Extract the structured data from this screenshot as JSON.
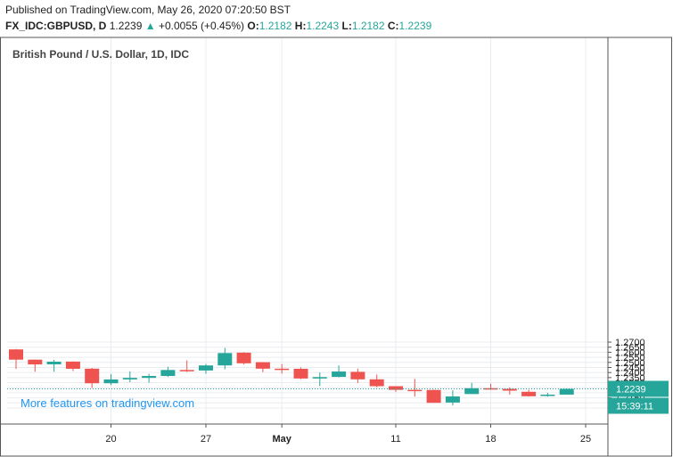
{
  "header": {
    "published": "Published on TradingView.com, May 26, 2020 07:20:50 BST",
    "symbol": "FX_IDC:GBPUSD, D",
    "last": "1.2239",
    "change_arrow": "▲",
    "change": "+0.0055 (+0.45%)",
    "o_label": "O:",
    "o_value": "1.2182",
    "h_label": "H:",
    "h_value": "1.2243",
    "l_label": "L:",
    "l_value": "1.2182",
    "c_label": "C:",
    "c_value": "1.2239"
  },
  "watermark": "More features on tradingview.com",
  "price_tag": "1.2239",
  "timer_tag": "15:39:11",
  "colors": {
    "up": "#26a69a",
    "down": "#ef5350",
    "grid": "#e9ecef",
    "axis": "#555555",
    "price_line": "#26a69a"
  },
  "chart_data": {
    "type": "candlestick",
    "title": "British Pound / U.S. Dollar, 1D, IDC",
    "ylim": [
      1.2025,
      1.2725
    ],
    "y_ticks": [
      "1.2050",
      "1.2100",
      "1.2150",
      "1.2200",
      "1.2250",
      "1.2300",
      "1.2350",
      "1.2400",
      "1.2450",
      "1.2500",
      "1.2550",
      "1.2600",
      "1.2650",
      "1.2700"
    ],
    "x_tick_labels": [
      {
        "label": "20",
        "day_index": 5,
        "bold": false
      },
      {
        "label": "27",
        "day_index": 10,
        "bold": false
      },
      {
        "label": "May",
        "day_index": 14,
        "bold": true
      },
      {
        "label": "11",
        "day_index": 20,
        "bold": false
      },
      {
        "label": "18",
        "day_index": 25,
        "bold": false
      },
      {
        "label": "25",
        "day_index": 30,
        "bold": false
      }
    ],
    "candles": [
      {
        "o": 1.2628,
        "h": 1.2632,
        "l": 1.2435,
        "c": 1.2527
      },
      {
        "o": 1.2527,
        "h": 1.2527,
        "l": 1.2408,
        "c": 1.248
      },
      {
        "o": 1.2481,
        "h": 1.2525,
        "l": 1.2408,
        "c": 1.2507
      },
      {
        "o": 1.2508,
        "h": 1.251,
        "l": 1.2415,
        "c": 1.2437
      },
      {
        "o": 1.2438,
        "h": 1.2445,
        "l": 1.2247,
        "c": 1.2294
      },
      {
        "o": 1.2294,
        "h": 1.2385,
        "l": 1.2275,
        "c": 1.2332
      },
      {
        "o": 1.2332,
        "h": 1.2411,
        "l": 1.2305,
        "c": 1.2347
      },
      {
        "o": 1.2347,
        "h": 1.2387,
        "l": 1.23,
        "c": 1.2366
      },
      {
        "o": 1.2366,
        "h": 1.2457,
        "l": 1.2357,
        "c": 1.2425
      },
      {
        "o": 1.2425,
        "h": 1.252,
        "l": 1.2405,
        "c": 1.242
      },
      {
        "o": 1.242,
        "h": 1.2485,
        "l": 1.2388,
        "c": 1.247
      },
      {
        "o": 1.247,
        "h": 1.2643,
        "l": 1.2432,
        "c": 1.2592
      },
      {
        "o": 1.2596,
        "h": 1.26,
        "l": 1.248,
        "c": 1.2491
      },
      {
        "o": 1.2502,
        "h": 1.2502,
        "l": 1.2404,
        "c": 1.2438
      },
      {
        "o": 1.2438,
        "h": 1.2483,
        "l": 1.239,
        "c": 1.2437
      },
      {
        "o": 1.2437,
        "h": 1.245,
        "l": 1.2335,
        "c": 1.2341
      },
      {
        "o": 1.2341,
        "h": 1.24,
        "l": 1.2266,
        "c": 1.2355
      },
      {
        "o": 1.2357,
        "h": 1.247,
        "l": 1.2353,
        "c": 1.241
      },
      {
        "o": 1.2407,
        "h": 1.2438,
        "l": 1.2298,
        "c": 1.2333
      },
      {
        "o": 1.2333,
        "h": 1.238,
        "l": 1.2255,
        "c": 1.2265
      },
      {
        "o": 1.2265,
        "h": 1.2265,
        "l": 1.2209,
        "c": 1.2229
      },
      {
        "o": 1.2229,
        "h": 1.2338,
        "l": 1.2163,
        "c": 1.2223
      },
      {
        "o": 1.2228,
        "h": 1.2231,
        "l": 1.2101,
        "c": 1.2101
      },
      {
        "o": 1.2104,
        "h": 1.2225,
        "l": 1.2075,
        "c": 1.2164
      },
      {
        "o": 1.2188,
        "h": 1.2298,
        "l": 1.2188,
        "c": 1.2245
      },
      {
        "o": 1.2245,
        "h": 1.2288,
        "l": 1.2229,
        "c": 1.2239
      },
      {
        "o": 1.2239,
        "h": 1.2252,
        "l": 1.2182,
        "c": 1.2221
      },
      {
        "o": 1.221,
        "h": 1.223,
        "l": 1.2163,
        "c": 1.2166
      },
      {
        "o": 1.2173,
        "h": 1.22,
        "l": 1.2162,
        "c": 1.2182
      },
      {
        "o": 1.2182,
        "h": 1.2243,
        "l": 1.2182,
        "c": 1.2239
      }
    ],
    "candle_days": [
      0,
      1,
      2,
      3,
      4,
      5,
      6,
      7,
      8,
      9,
      10,
      11,
      12,
      13,
      14,
      15,
      16,
      17,
      18,
      19,
      20,
      21,
      22,
      23,
      24,
      25,
      26,
      27,
      28,
      29
    ],
    "last_price": 1.2239,
    "grid": true
  }
}
